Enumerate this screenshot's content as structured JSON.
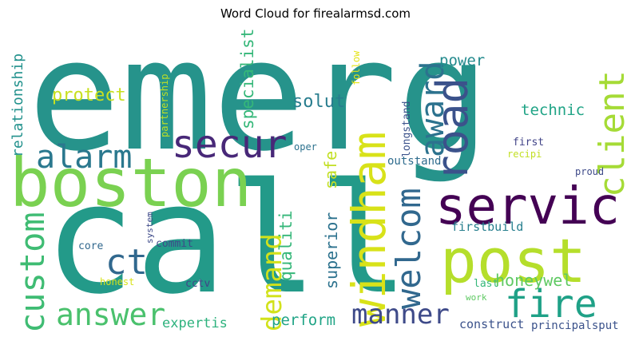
{
  "chart_data": {
    "type": "wordcloud",
    "title": "Word Cloud for firealarmsd.com",
    "words": [
      {
        "text": "emerg",
        "weight": 100,
        "color": "#26938b",
        "orientation": "horizontal"
      },
      {
        "text": "call",
        "weight": 96,
        "color": "#239a89",
        "orientation": "horizontal"
      },
      {
        "text": "boston",
        "weight": 45,
        "color": "#7ad151",
        "orientation": "horizontal"
      },
      {
        "text": "post",
        "weight": 38,
        "color": "#b5de2b",
        "orientation": "horizontal"
      },
      {
        "text": "servic",
        "weight": 33,
        "color": "#440154",
        "orientation": "horizontal"
      },
      {
        "text": "windham",
        "weight": 30,
        "color": "#d8e219",
        "orientation": "vertical"
      },
      {
        "text": "road",
        "weight": 28,
        "color": "#3b528b",
        "orientation": "vertical"
      },
      {
        "text": "secur",
        "weight": 25,
        "color": "#482878",
        "orientation": "horizontal"
      },
      {
        "text": "fire",
        "weight": 25,
        "color": "#1fa187",
        "orientation": "horizontal"
      },
      {
        "text": "client",
        "weight": 24,
        "color": "#a5db36",
        "orientation": "vertical"
      },
      {
        "text": "ct",
        "weight": 24,
        "color": "#31688e",
        "orientation": "horizontal"
      },
      {
        "text": "alarm",
        "weight": 22,
        "color": "#2a788e",
        "orientation": "horizontal"
      },
      {
        "text": "custom",
        "weight": 22,
        "color": "#3fbc73",
        "orientation": "vertical"
      },
      {
        "text": "welcom",
        "weight": 22,
        "color": "#31688e",
        "orientation": "vertical"
      },
      {
        "text": "award",
        "weight": 21,
        "color": "#2c728e",
        "orientation": "vertical"
      },
      {
        "text": "answer",
        "weight": 21,
        "color": "#4ac16d",
        "orientation": "horizontal"
      },
      {
        "text": "demand",
        "weight": 18,
        "color": "#d2e21b",
        "orientation": "vertical"
      },
      {
        "text": "manner",
        "weight": 18,
        "color": "#3e4a89",
        "orientation": "horizontal"
      },
      {
        "text": "honeywel",
        "weight": 13,
        "color": "#5ec962",
        "orientation": "horizontal"
      },
      {
        "text": "solut",
        "weight": 13,
        "color": "#287d8e",
        "orientation": "horizontal"
      },
      {
        "text": "protect",
        "weight": 13,
        "color": "#c8e020",
        "orientation": "horizontal"
      },
      {
        "text": "power",
        "weight": 12,
        "color": "#238a8d",
        "orientation": "horizontal"
      },
      {
        "text": "specialist",
        "weight": 12,
        "color": "#35b779",
        "orientation": "vertical"
      },
      {
        "text": "qualiti",
        "weight": 11,
        "color": "#35b779",
        "orientation": "vertical"
      },
      {
        "text": "superior",
        "weight": 11,
        "color": "#2c728e",
        "orientation": "vertical"
      },
      {
        "text": "safe",
        "weight": 11,
        "color": "#c2df23",
        "orientation": "vertical"
      },
      {
        "text": "technic",
        "weight": 11,
        "color": "#20a486",
        "orientation": "horizontal"
      },
      {
        "text": "relationship",
        "weight": 10,
        "color": "#21918c",
        "orientation": "vertical"
      },
      {
        "text": "perform",
        "weight": 11,
        "color": "#20a486",
        "orientation": "horizontal"
      },
      {
        "text": "expertis",
        "weight": 10,
        "color": "#2db27d",
        "orientation": "horizontal"
      },
      {
        "text": "construct",
        "weight": 8,
        "color": "#3b528b",
        "orientation": "horizontal"
      },
      {
        "text": "principalsput",
        "weight": 7,
        "color": "#3b528b",
        "orientation": "horizontal"
      },
      {
        "text": "firstbuild",
        "weight": 8,
        "color": "#277f8e",
        "orientation": "horizontal"
      },
      {
        "text": "outstand",
        "weight": 7,
        "color": "#2f6c8e",
        "orientation": "horizontal"
      },
      {
        "text": "longstand",
        "weight": 7,
        "color": "#3b528b",
        "orientation": "vertical"
      },
      {
        "text": "first",
        "weight": 7,
        "color": "#414487",
        "orientation": "horizontal"
      },
      {
        "text": "partnership",
        "weight": 6,
        "color": "#bddf26",
        "orientation": "vertical"
      },
      {
        "text": "follow",
        "weight": 6,
        "color": "#e5e419",
        "orientation": "vertical"
      },
      {
        "text": "oper",
        "weight": 6,
        "color": "#2c728e",
        "orientation": "horizontal"
      },
      {
        "text": "recipi",
        "weight": 6,
        "color": "#c2df23",
        "orientation": "horizontal"
      },
      {
        "text": "proud",
        "weight": 6,
        "color": "#3e4a89",
        "orientation": "horizontal"
      },
      {
        "text": "system",
        "weight": 6,
        "color": "#3e4a89",
        "orientation": "vertical"
      },
      {
        "text": "commit",
        "weight": 7,
        "color": "#3e4a89",
        "orientation": "horizontal"
      },
      {
        "text": "core",
        "weight": 7,
        "color": "#31688e",
        "orientation": "horizontal"
      },
      {
        "text": "honest",
        "weight": 6,
        "color": "#d8e219",
        "orientation": "horizontal"
      },
      {
        "text": "cctv",
        "weight": 6,
        "color": "#414487",
        "orientation": "horizontal"
      },
      {
        "text": "last",
        "weight": 6,
        "color": "#35b779",
        "orientation": "horizontal"
      },
      {
        "text": "work",
        "weight": 5,
        "color": "#5ec962",
        "orientation": "horizontal"
      }
    ]
  }
}
